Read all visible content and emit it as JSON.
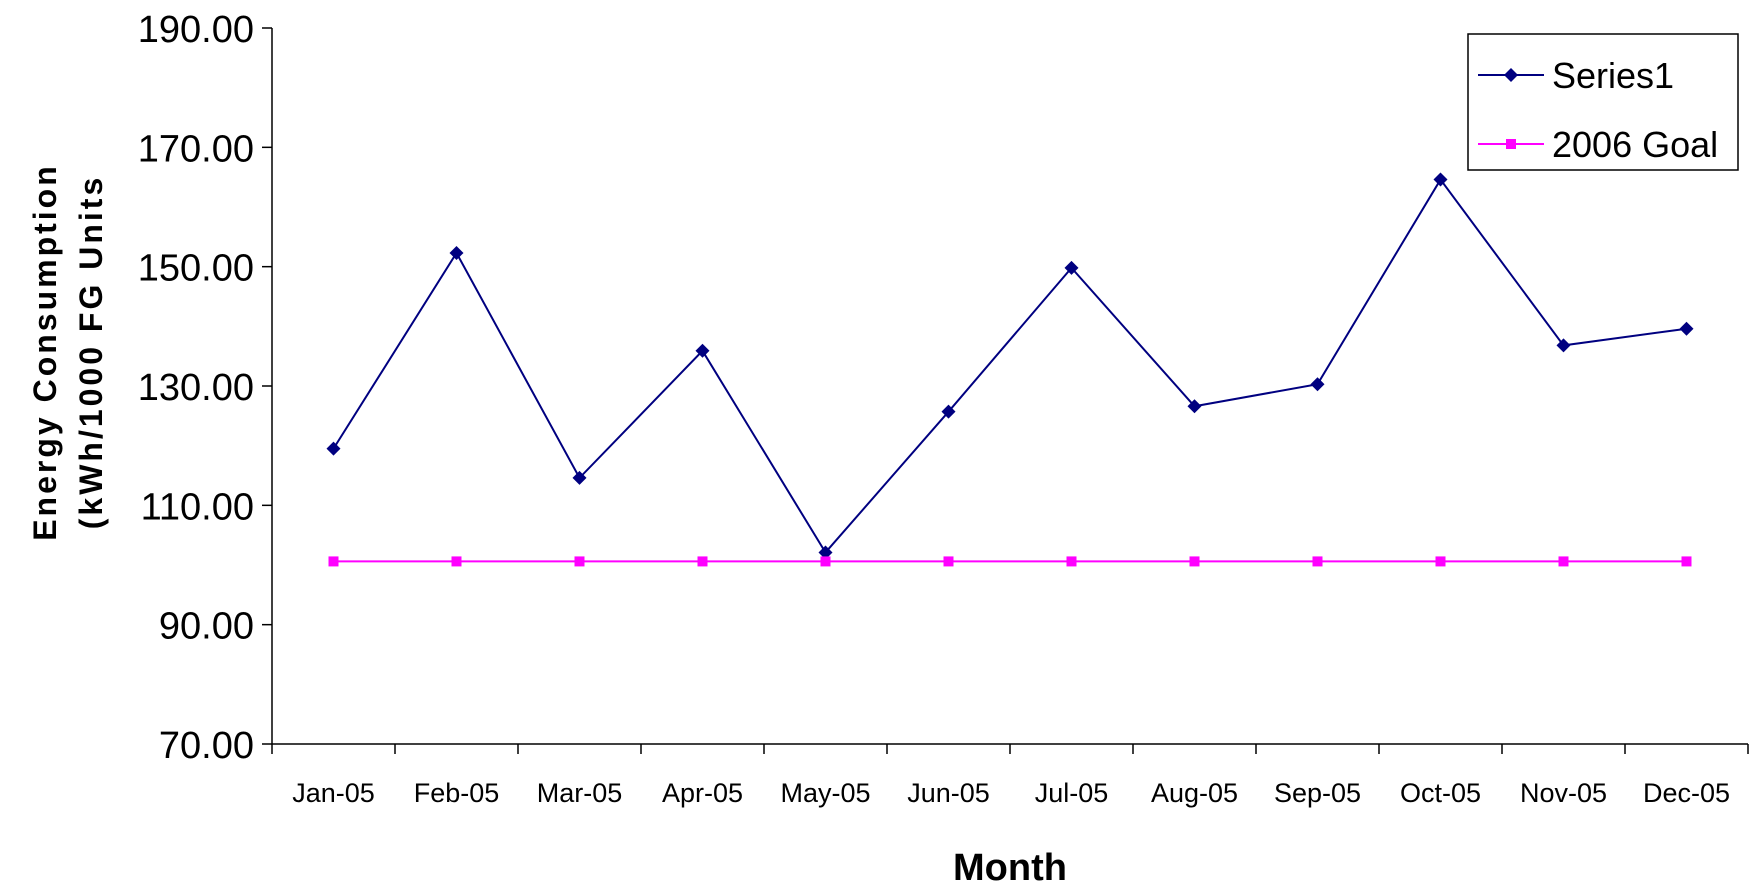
{
  "chart_data": {
    "type": "line",
    "title": "",
    "xlabel": "Month",
    "ylabel_lines": [
      "Energy Consumption",
      "(kWh/1000 FG Units"
    ],
    "categories": [
      "Jan-05",
      "Feb-05",
      "Mar-05",
      "Apr-05",
      "May-05",
      "Jun-05",
      "Jul-05",
      "Aug-05",
      "Sep-05",
      "Oct-05",
      "Nov-05",
      "Dec-05"
    ],
    "ylim": [
      70,
      190
    ],
    "yticks": [
      "70.00",
      "90.00",
      "110.00",
      "130.00",
      "150.00",
      "170.00",
      "190.00"
    ],
    "series": [
      {
        "name": "Series1",
        "color": "#000080",
        "marker": "diamond",
        "values": [
          119.5,
          152.3,
          114.6,
          135.9,
          102.1,
          125.7,
          149.8,
          126.6,
          130.3,
          164.6,
          136.8,
          139.6
        ]
      },
      {
        "name": "2006 Goal",
        "color": "#ff00ff",
        "marker": "square",
        "values": [
          100.6,
          100.6,
          100.6,
          100.6,
          100.6,
          100.6,
          100.6,
          100.6,
          100.6,
          100.6,
          100.6,
          100.6
        ]
      }
    ],
    "grid": false,
    "legend_position": "top-right"
  }
}
